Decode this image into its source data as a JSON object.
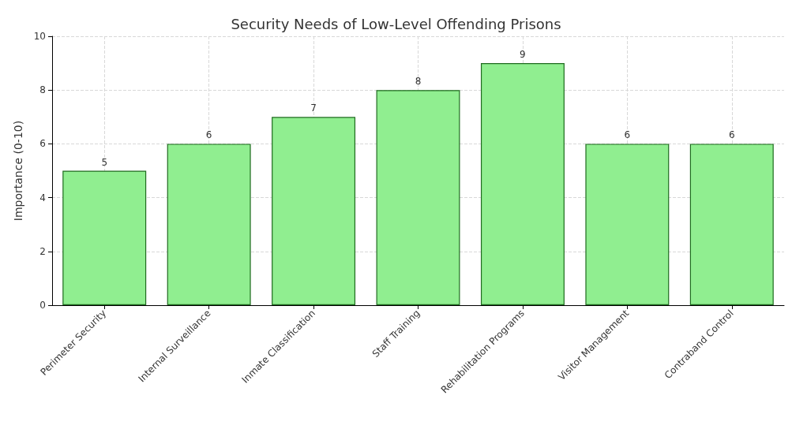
{
  "chart_data": {
    "type": "bar",
    "title": "Security Needs of Low-Level Offending Prisons",
    "ylabel": "Importance (0-10)",
    "categories": [
      "Perimeter Security",
      "Internal Surveillance",
      "Inmate Classification",
      "Staff Training",
      "Rehabilitation Programs",
      "Visitor Management",
      "Contraband Control"
    ],
    "values": [
      5,
      6,
      7,
      8,
      9,
      6,
      6
    ],
    "color": "#90ee90",
    "ylim": [
      0,
      10
    ],
    "yticks": [
      0,
      2,
      4,
      6,
      8,
      10
    ],
    "grid": true,
    "data_labels": true
  }
}
